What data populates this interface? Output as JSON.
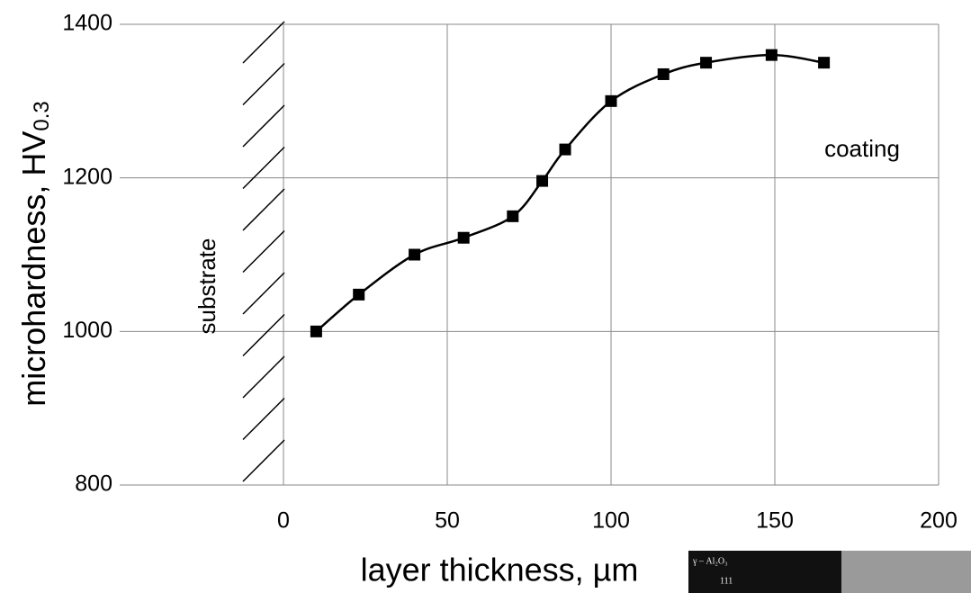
{
  "chart_data": {
    "type": "line",
    "x_label": "layer thickness, µm",
    "y_label": "microhardness, HV",
    "y_label_sub": "0.3",
    "annotations": [
      "substrate",
      "coating"
    ],
    "inset_labels": [
      "γ – Al₂O₃",
      "111"
    ],
    "x": [
      10,
      23,
      40,
      55,
      70,
      79,
      86,
      100,
      116,
      129,
      149,
      165
    ],
    "series": [
      {
        "color": "#000000",
        "values": [
          1000,
          1048,
          1100,
          1122,
          1150,
          1196,
          1237,
          1300,
          1335,
          1350,
          1360,
          1350
        ]
      }
    ],
    "xlim": [
      -50,
      200
    ],
    "xticks": [
      0,
      50,
      100,
      150,
      200
    ],
    "ylim": [
      800,
      1400
    ],
    "yticks": [
      800,
      1000,
      1200,
      1400
    ],
    "grid": true
  }
}
